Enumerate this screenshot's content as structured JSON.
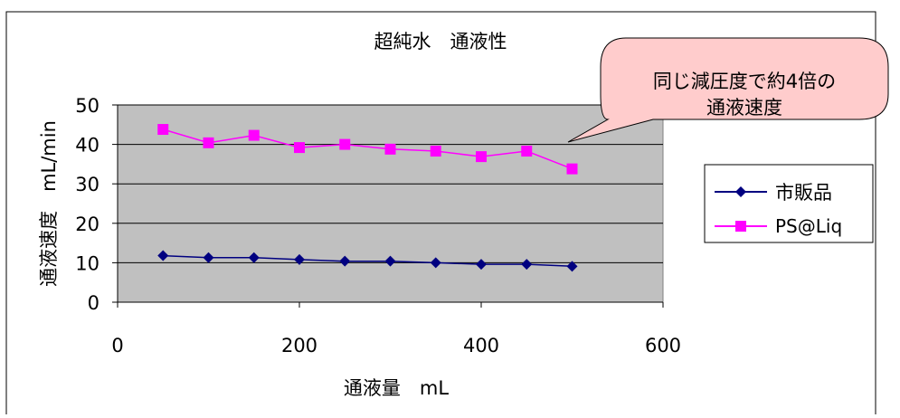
{
  "chart_data": {
    "type": "line",
    "title": "超純水　通液性",
    "xlabel": "通液量　mL",
    "ylabel": "通液速度　mL/min",
    "xlim": [
      0,
      600
    ],
    "ylim": [
      0,
      50
    ],
    "x_ticks": [
      "0",
      "200",
      "400",
      "600"
    ],
    "y_ticks": [
      "0",
      "10",
      "20",
      "30",
      "40",
      "50"
    ],
    "grid": "horizontal",
    "legend_position": "right",
    "plot_background": "#c0c0c0",
    "x": [
      50,
      100,
      150,
      200,
      250,
      300,
      350,
      400,
      450,
      500
    ],
    "series": [
      {
        "name": "市販品",
        "color": "#000080",
        "marker": "diamond",
        "values": [
          11.8,
          11.3,
          11.3,
          10.8,
          10.4,
          10.4,
          10.0,
          9.6,
          9.6,
          9.1
        ]
      },
      {
        "name": "PS@Liq",
        "color": "#ff00ff",
        "marker": "square",
        "values": [
          43.8,
          40.4,
          42.3,
          39.2,
          40.0,
          38.8,
          38.3,
          36.9,
          38.3,
          33.8
        ]
      }
    ],
    "annotations": [
      {
        "lines": [
          "同じ減圧度で約4倍の",
          "通液速度"
        ],
        "fill": "#ffcccc"
      }
    ]
  }
}
